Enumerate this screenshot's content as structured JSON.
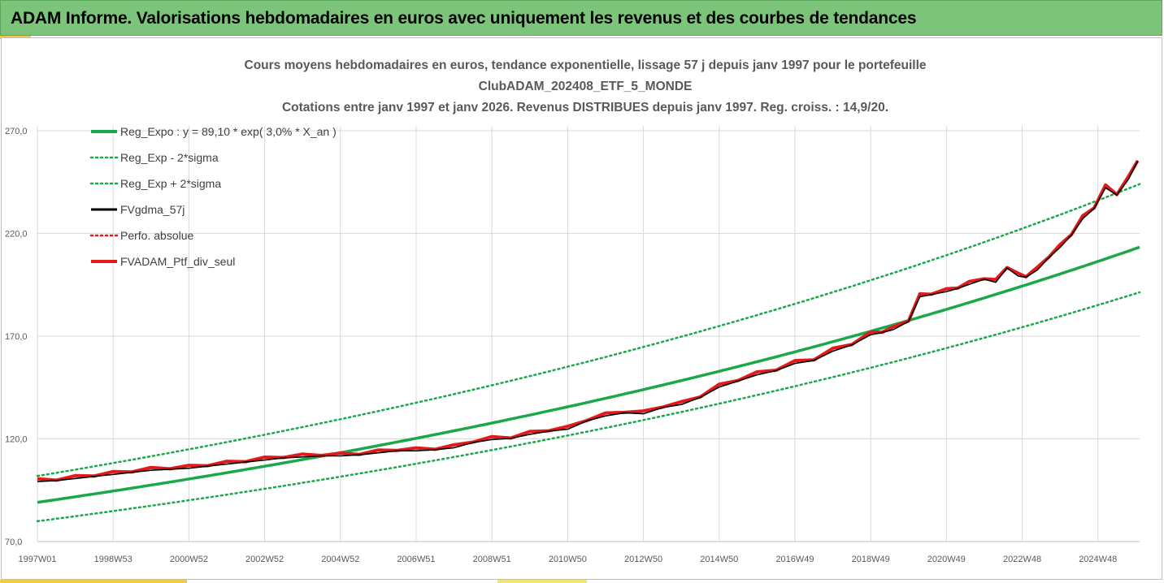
{
  "banner": {
    "title": "ADAM Informe. Valorisations hebdomadaires en euros avec uniquement les revenus et des courbes de tendances"
  },
  "colors": {
    "banner": "#7cc47a",
    "regression": "#1aa84a",
    "black_line": "#000000",
    "red_line": "#e41a1a",
    "gridline": "#d9d9d9"
  },
  "chart_data": {
    "type": "line",
    "title": [
      "Cours moyens hebdomadaires  en euros, tendance exponentielle, lissage 57 j depuis janv 1997 pour le portefeuille",
      "ClubADAM_202408_ETF_5_MONDE",
      "Cotations entre janv 1997 et janv 2026. Revenus DISTRIBUES depuis janv 1997. Reg. croiss. : 14,9/20."
    ],
    "xlabel": "",
    "ylabel": "",
    "ylim": [
      70,
      270
    ],
    "xlim": [
      0,
      29.1
    ],
    "yticks": [
      "70,0",
      "120,0",
      "170,0",
      "220,0",
      "270,0"
    ],
    "yticks_values": [
      70,
      120,
      170,
      220,
      270
    ],
    "xticks": [
      "1997W01",
      "1998W53",
      "2000W52",
      "2002W52",
      "2004W52",
      "2006W51",
      "2008W51",
      "2010W50",
      "2012W50",
      "2014W50",
      "2016W49",
      "2018W49",
      "2020W49",
      "2022W48",
      "2024W48"
    ],
    "xticks_values": [
      0,
      2,
      4,
      6,
      8,
      10,
      12,
      14,
      16,
      18,
      20,
      22,
      24,
      26,
      28
    ],
    "grid": true,
    "legend_position": "top-left",
    "regression": {
      "a": 89.1,
      "rate": 0.03,
      "sigma_low_factor": 0.897,
      "sigma_high_factor": 1.144
    },
    "series": [
      {
        "name": "Reg_Expo : y = 89,10 * exp( 3,0% *  X_an )",
        "style": "solid-thick",
        "color": "#1aa84a",
        "kind": "regression"
      },
      {
        "name": "Reg_Exp - 2*sigma",
        "style": "dotted",
        "color": "#1aa84a",
        "kind": "regression_low"
      },
      {
        "name": "Reg_Exp + 2*sigma",
        "style": "dotted",
        "color": "#1aa84a",
        "kind": "regression_high"
      },
      {
        "name": "FVgdma_57j",
        "style": "solid",
        "color": "#000000",
        "kind": "smoothed"
      },
      {
        "name": "Perfo. absolue",
        "style": "dotted",
        "color": "#e41a1a",
        "kind": "none"
      },
      {
        "name": "FVADAM_Ptf_div_seul",
        "style": "solid-thick",
        "color": "#e41a1a",
        "kind": "price"
      }
    ],
    "price_points": {
      "x": [
        0,
        0.5,
        1,
        1.5,
        2,
        2.5,
        3,
        3.5,
        4,
        4.5,
        5,
        5.5,
        6,
        6.5,
        7,
        7.5,
        8,
        8.5,
        9,
        9.5,
        10,
        10.5,
        11,
        11.5,
        12,
        12.5,
        13,
        13.5,
        14,
        14.5,
        15,
        15.5,
        16,
        16.5,
        17,
        17.5,
        18,
        18.5,
        19,
        19.5,
        20,
        20.5,
        21,
        21.5,
        22,
        22.3,
        22.6,
        23,
        23.3,
        23.6,
        24,
        24.3,
        24.6,
        25,
        25.3,
        25.6,
        25.9,
        26.1,
        26.4,
        26.7,
        27,
        27.3,
        27.6,
        27.9,
        28.2,
        28.5,
        28.8,
        29.05
      ],
      "y": [
        100,
        100.5,
        101.5,
        102.5,
        103.5,
        104.5,
        105.5,
        106,
        106.5,
        107.5,
        108.5,
        109.5,
        110.5,
        111.5,
        112,
        112.5,
        112.5,
        113,
        114,
        115,
        115,
        115.5,
        116.5,
        119,
        120.5,
        121,
        123,
        124.5,
        125.5,
        129.5,
        132,
        133.5,
        133,
        136,
        137.5,
        141,
        146,
        149,
        152,
        154,
        157.5,
        159,
        163.5,
        166.5,
        171.5,
        172.5,
        174,
        178,
        190,
        191,
        192.5,
        194,
        196,
        198.5,
        197,
        204,
        200,
        199.5,
        203,
        209,
        214,
        220,
        228,
        233,
        243,
        239.5,
        247,
        256
      ]
    }
  },
  "legend": {
    "items": [
      "Reg_Expo : y = 89,10 * exp( 3,0% *  X_an )",
      "Reg_Exp - 2*sigma",
      "Reg_Exp + 2*sigma",
      "FVgdma_57j",
      "Perfo. absolue",
      "FVADAM_Ptf_div_seul"
    ]
  }
}
